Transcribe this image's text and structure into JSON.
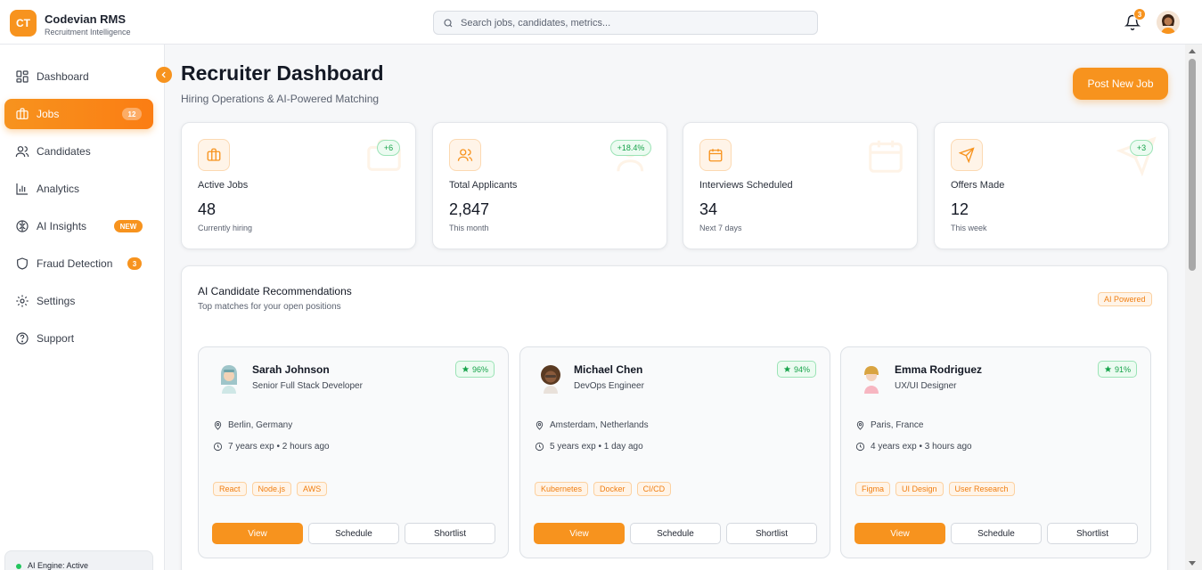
{
  "brand": {
    "logo": "CT",
    "name": "Codevian RMS",
    "subtitle": "Recruitment Intelligence"
  },
  "search": {
    "placeholder": "Search jobs, candidates, metrics..."
  },
  "notifications": {
    "count": "3"
  },
  "sidebar": {
    "items": [
      {
        "label": "Dashboard",
        "icon": "grid-icon"
      },
      {
        "label": "Jobs",
        "icon": "briefcase-icon",
        "badge": "12",
        "active": true
      },
      {
        "label": "Candidates",
        "icon": "users-icon"
      },
      {
        "label": "Analytics",
        "icon": "bar-chart-icon"
      },
      {
        "label": "AI Insights",
        "icon": "brain-icon",
        "badge": "NEW"
      },
      {
        "label": "Fraud Detection",
        "icon": "shield-icon",
        "badge": "3"
      },
      {
        "label": "Settings",
        "icon": "gear-icon"
      },
      {
        "label": "Support",
        "icon": "help-icon"
      }
    ],
    "engine_status": "AI Engine: Active"
  },
  "header": {
    "title": "Recruiter Dashboard",
    "subtitle": "Hiring Operations & AI-Powered Matching",
    "post_button": "Post New Job"
  },
  "stats": [
    {
      "label": "Active Jobs",
      "value": "48",
      "note": "Currently hiring",
      "change": "+6",
      "icon": "briefcase-icon"
    },
    {
      "label": "Total Applicants",
      "value": "2,847",
      "note": "This month",
      "change": "+18.4%",
      "icon": "users-icon"
    },
    {
      "label": "Interviews Scheduled",
      "value": "34",
      "note": "Next 7 days",
      "change": "",
      "icon": "calendar-icon"
    },
    {
      "label": "Offers Made",
      "value": "12",
      "note": "This week",
      "change": "+3",
      "icon": "send-icon"
    }
  ],
  "recommendations": {
    "title": "AI Candidate Recommendations",
    "subtitle": "Top matches for your open positions",
    "badge": "AI Powered",
    "candidates": [
      {
        "name": "Sarah Johnson",
        "role": "Senior Full Stack Developer",
        "score": "96%",
        "location": "Berlin, Germany",
        "experience": "7 years exp • 2 hours ago",
        "tags": [
          "React",
          "Node.js",
          "AWS"
        ]
      },
      {
        "name": "Michael Chen",
        "role": "DevOps Engineer",
        "score": "94%",
        "location": "Amsterdam, Netherlands",
        "experience": "5 years exp • 1 day ago",
        "tags": [
          "Kubernetes",
          "Docker",
          "CI/CD"
        ]
      },
      {
        "name": "Emma Rodriguez",
        "role": "UX/UI Designer",
        "score": "91%",
        "location": "Paris, France",
        "experience": "4 years exp • 3 hours ago",
        "tags": [
          "Figma",
          "UI Design",
          "User Research"
        ]
      }
    ],
    "actions": {
      "view": "View",
      "schedule": "Schedule",
      "shortlist": "Shortlist"
    }
  },
  "colors": {
    "accent": "#f7931e",
    "success": "#16a34a",
    "background": "#f6f7f9"
  }
}
